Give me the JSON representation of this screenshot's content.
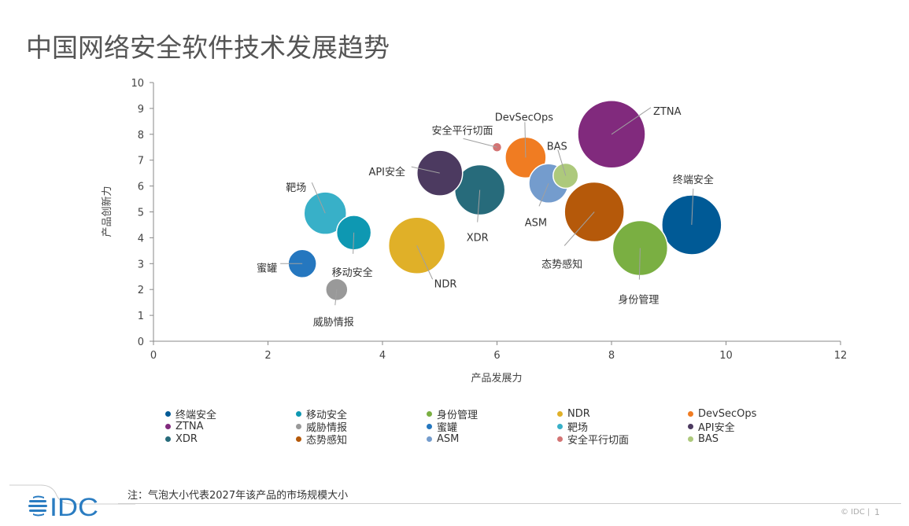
{
  "title": "中国网络安全软件技术发展趋势",
  "chart_data": {
    "type": "bubble",
    "title": "中国网络安全软件技术发展趋势",
    "xlabel": "产品发展力",
    "ylabel": "产品创新力",
    "xlim": [
      0,
      12
    ],
    "ylim": [
      0,
      10
    ],
    "xticks": [
      "0",
      "2",
      "4",
      "6",
      "8",
      "10",
      "12"
    ],
    "yticks": [
      "0",
      "1",
      "2",
      "3",
      "4",
      "5",
      "6",
      "7",
      "8",
      "9",
      "10"
    ],
    "grid": false,
    "legend_placement": "bottom",
    "size_note": "注：气泡大小代表2027年该产品的市场规模大小",
    "series": [
      {
        "name": "终端安全",
        "x": 9.4,
        "y": 4.5,
        "size": 38,
        "color": "#005a96"
      },
      {
        "name": "移动安全",
        "x": 3.5,
        "y": 4.2,
        "size": 22,
        "color": "#0e98b2"
      },
      {
        "name": "身份管理",
        "x": 8.5,
        "y": 3.6,
        "size": 35,
        "color": "#7aaf42"
      },
      {
        "name": "NDR",
        "x": 4.6,
        "y": 3.7,
        "size": 36,
        "color": "#e0b028"
      },
      {
        "name": "DevSecOps",
        "x": 6.5,
        "y": 7.1,
        "size": 26,
        "color": "#f07c22"
      },
      {
        "name": "ZTNA",
        "x": 8.0,
        "y": 8.0,
        "size": 43,
        "color": "#812a7d"
      },
      {
        "name": "威胁情报",
        "x": 3.2,
        "y": 2.0,
        "size": 14,
        "color": "#999999"
      },
      {
        "name": "蜜罐",
        "x": 2.6,
        "y": 3.0,
        "size": 18,
        "color": "#2577bf"
      },
      {
        "name": "靶场",
        "x": 3.0,
        "y": 4.95,
        "size": 27,
        "color": "#38b0c8"
      },
      {
        "name": "API安全",
        "x": 5.0,
        "y": 6.5,
        "size": 29,
        "color": "#4c3a60"
      },
      {
        "name": "XDR",
        "x": 5.7,
        "y": 5.85,
        "size": 32,
        "color": "#276b7b"
      },
      {
        "name": "态势感知",
        "x": 7.7,
        "y": 5.0,
        "size": 38,
        "color": "#b5590a"
      },
      {
        "name": "ASM",
        "x": 6.9,
        "y": 6.1,
        "size": 25,
        "color": "#749ccd"
      },
      {
        "name": "安全平行切面",
        "x": 6.0,
        "y": 7.5,
        "size": 6,
        "color": "#d37474"
      },
      {
        "name": "BAS",
        "x": 7.2,
        "y": 6.4,
        "size": 16,
        "color": "#adc97c"
      }
    ]
  },
  "footer": {
    "note": "注：气泡大小代表2027年该产品的市场规模大小",
    "logo_text": "IDC",
    "copyright": "© IDC |",
    "page": "1"
  }
}
